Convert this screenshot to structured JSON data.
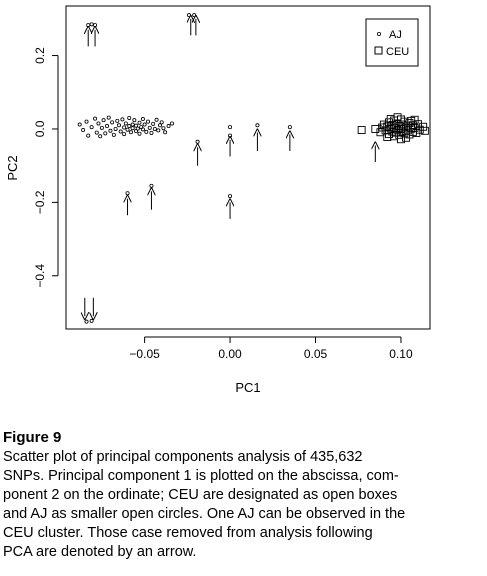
{
  "chart_data": {
    "type": "scatter",
    "xlabel": "PC1",
    "ylabel": "PC2",
    "xlim": [
      -0.096,
      0.117
    ],
    "ylim": [
      -0.545,
      0.335
    ],
    "xticks": [
      -0.05,
      0.0,
      0.05,
      0.1
    ],
    "xtick_labels": [
      "−0.05",
      "0.00",
      "0.05",
      "0.10"
    ],
    "yticks": [
      -0.4,
      -0.2,
      0.0,
      0.2
    ],
    "ytick_labels": [
      "−0.4",
      "−0.2",
      "0.0",
      "0.2"
    ],
    "grid": false,
    "legend_position": "top-right",
    "series": [
      {
        "name": "AJ",
        "marker": "small-open-circle",
        "points": [
          [
            -0.083,
            0.283
          ],
          [
            -0.081,
            0.285
          ],
          [
            -0.079,
            0.283
          ],
          [
            -0.024,
            0.31
          ],
          [
            -0.021,
            0.31
          ],
          [
            -0.06,
            -0.175
          ],
          [
            -0.046,
            -0.155
          ],
          [
            -0.019,
            -0.035
          ],
          [
            0.0,
            -0.183
          ],
          [
            0.0,
            0.005
          ],
          [
            0.0,
            -0.018
          ],
          [
            0.016,
            0.01
          ],
          [
            0.035,
            0.005
          ],
          [
            -0.084,
            -0.525
          ],
          [
            -0.081,
            -0.523
          ],
          [
            -0.088,
            0.012
          ],
          [
            -0.086,
            -0.003
          ],
          [
            -0.084,
            0.02
          ],
          [
            -0.083,
            -0.018
          ],
          [
            -0.081,
            0.005
          ],
          [
            -0.079,
            0.028
          ],
          [
            -0.078,
            -0.01
          ],
          [
            -0.077,
            0.015
          ],
          [
            -0.076,
            -0.02
          ],
          [
            -0.075,
            0.003
          ],
          [
            -0.074,
            0.024
          ],
          [
            -0.073,
            -0.012
          ],
          [
            -0.072,
            0.008
          ],
          [
            -0.071,
            0.031
          ],
          [
            -0.07,
            -0.005
          ],
          [
            -0.069,
            0.018
          ],
          [
            -0.068,
            -0.016
          ],
          [
            -0.067,
            0.0
          ],
          [
            -0.066,
            0.022
          ],
          [
            -0.065,
            0.01
          ],
          [
            -0.064,
            -0.007
          ],
          [
            -0.063,
            0.026
          ],
          [
            -0.062,
            0.004
          ],
          [
            -0.062,
            -0.014
          ],
          [
            -0.061,
            0.015
          ],
          [
            -0.06,
            -0.002
          ],
          [
            -0.059,
            0.008
          ],
          [
            -0.059,
            0.03
          ],
          [
            -0.058,
            -0.009
          ],
          [
            -0.057,
            0.012
          ],
          [
            -0.057,
            0.002
          ],
          [
            -0.056,
            0.024
          ],
          [
            -0.055,
            -0.006
          ],
          [
            -0.055,
            0.009
          ],
          [
            -0.054,
            0.001
          ],
          [
            -0.053,
            0.017
          ],
          [
            -0.053,
            -0.013
          ],
          [
            -0.052,
            0.005
          ],
          [
            -0.051,
            0.027
          ],
          [
            -0.051,
            -0.001
          ],
          [
            -0.05,
            0.012
          ],
          [
            -0.049,
            -0.008
          ],
          [
            -0.048,
            0.02
          ],
          [
            -0.047,
            0.003
          ],
          [
            -0.046,
            -0.011
          ],
          [
            -0.045,
            0.014
          ],
          [
            -0.044,
            0.0
          ],
          [
            -0.043,
            0.025
          ],
          [
            -0.042,
            -0.004
          ],
          [
            -0.041,
            0.01
          ],
          [
            -0.04,
            0.018
          ],
          [
            -0.039,
            0.002
          ],
          [
            -0.038,
            -0.009
          ],
          [
            -0.036,
            0.008
          ],
          [
            -0.034,
            0.015
          ],
          [
            0.088,
            0.005
          ]
        ]
      },
      {
        "name": "CEU",
        "marker": "open-square",
        "points": [
          [
            0.077,
            -0.003
          ],
          [
            0.085,
            0.0
          ],
          [
            0.088,
            -0.009
          ],
          [
            0.089,
            0.004
          ],
          [
            0.09,
            0.012
          ],
          [
            0.091,
            -0.004
          ],
          [
            0.092,
            0.007
          ],
          [
            0.093,
            -0.014
          ],
          [
            0.093,
            0.018
          ],
          [
            0.094,
            0.001
          ],
          [
            0.095,
            -0.007
          ],
          [
            0.095,
            0.011
          ],
          [
            0.096,
            0.023
          ],
          [
            0.096,
            -0.02
          ],
          [
            0.097,
            0.003
          ],
          [
            0.097,
            -0.01
          ],
          [
            0.098,
            0.015
          ],
          [
            0.098,
            -0.002
          ],
          [
            0.099,
            0.008
          ],
          [
            0.099,
            -0.016
          ],
          [
            0.1,
            0.026
          ],
          [
            0.1,
            0.0
          ],
          [
            0.101,
            -0.007
          ],
          [
            0.101,
            0.012
          ],
          [
            0.102,
            0.02
          ],
          [
            0.102,
            -0.012
          ],
          [
            0.103,
            0.004
          ],
          [
            0.103,
            -0.024
          ],
          [
            0.104,
            0.009
          ],
          [
            0.104,
            -0.004
          ],
          [
            0.105,
            0.016
          ],
          [
            0.105,
            -0.015
          ],
          [
            0.106,
            0.001
          ],
          [
            0.106,
            0.022
          ],
          [
            0.107,
            -0.008
          ],
          [
            0.107,
            0.01
          ],
          [
            0.108,
            0.003
          ],
          [
            0.109,
            -0.011
          ],
          [
            0.11,
            0.013
          ],
          [
            0.111,
            -0.002
          ],
          [
            0.113,
            0.006
          ],
          [
            0.114,
            -0.005
          ],
          [
            0.098,
            0.032
          ],
          [
            0.094,
            0.027
          ],
          [
            0.108,
            0.025
          ],
          [
            0.1,
            -0.028
          ],
          [
            0.092,
            -0.022
          ],
          [
            0.096,
            0.004
          ]
        ]
      }
    ],
    "arrows": [
      {
        "x": -0.083,
        "y_from": 0.225,
        "y_to": 0.27
      },
      {
        "x": -0.079,
        "y_from": 0.225,
        "y_to": 0.27
      },
      {
        "x": -0.023,
        "y_from": 0.255,
        "y_to": 0.3
      },
      {
        "x": -0.02,
        "y_from": 0.255,
        "y_to": 0.3
      },
      {
        "x": -0.019,
        "y_from": -0.1,
        "y_to": -0.05
      },
      {
        "x": -0.06,
        "y_from": -0.235,
        "y_to": -0.19
      },
      {
        "x": -0.046,
        "y_from": -0.22,
        "y_to": -0.17
      },
      {
        "x": 0.0,
        "y_from": -0.245,
        "y_to": -0.2
      },
      {
        "x": 0.0,
        "y_from": -0.075,
        "y_to": -0.03
      },
      {
        "x": 0.016,
        "y_from": -0.06,
        "y_to": -0.01
      },
      {
        "x": 0.035,
        "y_from": -0.06,
        "y_to": -0.015
      },
      {
        "x": 0.085,
        "y_from": -0.09,
        "y_to": -0.045
      },
      {
        "x": -0.085,
        "y_from": -0.46,
        "y_to": -0.51
      },
      {
        "x": -0.08,
        "y_from": -0.46,
        "y_to": -0.51
      }
    ]
  },
  "caption": {
    "title": "Figure 9",
    "lines": [
      "Scatter plot of principal components analysis of 435,632",
      "SNPs. Principal component 1 is plotted on the abscissa, com-",
      "ponent 2 on the ordinate; CEU are designated as open boxes",
      "and AJ as smaller open circles. One AJ can be observed in the",
      "CEU cluster. Those case removed from analysis following",
      "PCA are denoted by an arrow."
    ]
  }
}
